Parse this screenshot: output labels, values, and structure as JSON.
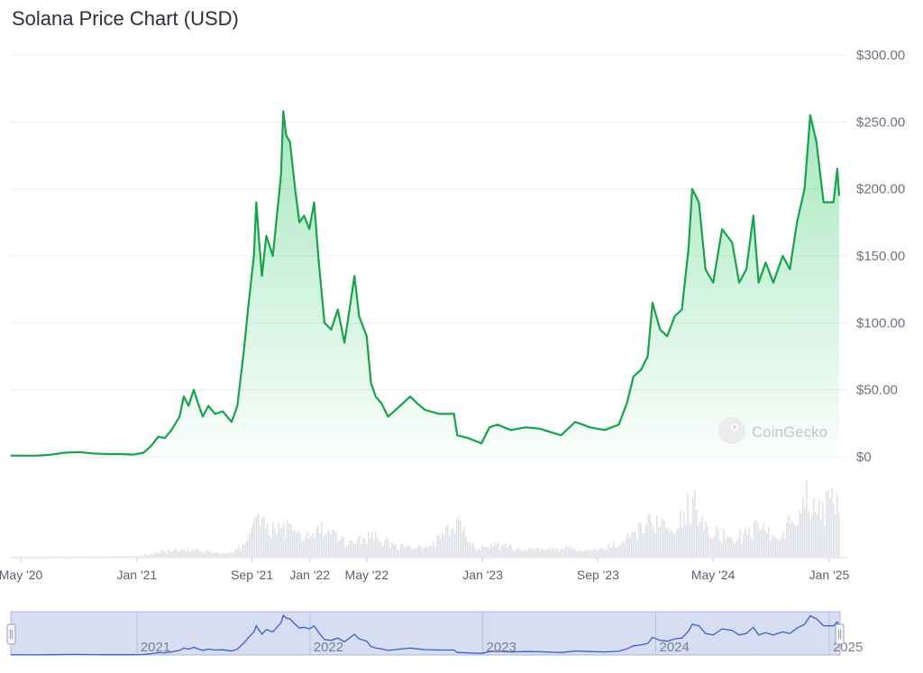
{
  "chart_data": {
    "type": "line",
    "title": "Solana Price Chart (USD)",
    "currency": "USD",
    "ylim": [
      0,
      300
    ],
    "y_ticks": [
      "$0",
      "$50.00",
      "$100.00",
      "$150.00",
      "$200.00",
      "$250.00",
      "$300.00"
    ],
    "x_ticks": [
      "May '20",
      "Jan '21",
      "Sep '21",
      "Jan '22",
      "May '22",
      "Jan '23",
      "Sep '23",
      "May '24",
      "Jan '25"
    ],
    "x_tick_dates": [
      "2020-05-01",
      "2021-01-01",
      "2021-09-01",
      "2022-01-01",
      "2022-05-01",
      "2023-01-01",
      "2023-09-01",
      "2024-05-01",
      "2025-01-01"
    ],
    "series": [
      {
        "color": "#16a34a",
        "points": [
          [
            "2020-04-10",
            0.9
          ],
          [
            "2020-06-01",
            0.8
          ],
          [
            "2020-07-01",
            1.5
          ],
          [
            "2020-08-01",
            3.0
          ],
          [
            "2020-09-01",
            3.5
          ],
          [
            "2020-10-01",
            2.5
          ],
          [
            "2020-11-01",
            2.0
          ],
          [
            "2020-12-01",
            2.0
          ],
          [
            "2020-12-25",
            1.6
          ],
          [
            "2021-01-15",
            3.0
          ],
          [
            "2021-01-31",
            8.0
          ],
          [
            "2021-02-15",
            15.0
          ],
          [
            "2021-03-01",
            14.0
          ],
          [
            "2021-03-15",
            20.0
          ],
          [
            "2021-04-01",
            30.0
          ],
          [
            "2021-04-10",
            45.0
          ],
          [
            "2021-04-20",
            38.0
          ],
          [
            "2021-05-01",
            50.0
          ],
          [
            "2021-05-10",
            40.0
          ],
          [
            "2021-05-20",
            30.0
          ],
          [
            "2021-06-01",
            38.0
          ],
          [
            "2021-06-15",
            32.0
          ],
          [
            "2021-07-01",
            34.0
          ],
          [
            "2021-07-20",
            26.0
          ],
          [
            "2021-08-01",
            38.0
          ],
          [
            "2021-08-15",
            80.0
          ],
          [
            "2021-08-25",
            115.0
          ],
          [
            "2021-09-05",
            150.0
          ],
          [
            "2021-09-10",
            190.0
          ],
          [
            "2021-09-15",
            165.0
          ],
          [
            "2021-09-22",
            135.0
          ],
          [
            "2021-10-01",
            165.0
          ],
          [
            "2021-10-15",
            150.0
          ],
          [
            "2021-11-01",
            210.0
          ],
          [
            "2021-11-06",
            258.0
          ],
          [
            "2021-11-12",
            240.0
          ],
          [
            "2021-11-20",
            235.0
          ],
          [
            "2021-12-01",
            200.0
          ],
          [
            "2021-12-10",
            175.0
          ],
          [
            "2021-12-20",
            180.0
          ],
          [
            "2021-12-31",
            170.0
          ],
          [
            "2022-01-10",
            190.0
          ],
          [
            "2022-01-20",
            145.0
          ],
          [
            "2022-02-01",
            100.0
          ],
          [
            "2022-02-15",
            95.0
          ],
          [
            "2022-03-01",
            110.0
          ],
          [
            "2022-03-15",
            85.0
          ],
          [
            "2022-04-01",
            125.0
          ],
          [
            "2022-04-05",
            135.0
          ],
          [
            "2022-04-15",
            105.0
          ],
          [
            "2022-05-01",
            90.0
          ],
          [
            "2022-05-10",
            55.0
          ],
          [
            "2022-05-20",
            45.0
          ],
          [
            "2022-06-01",
            40.0
          ],
          [
            "2022-06-15",
            30.0
          ],
          [
            "2022-07-01",
            35.0
          ],
          [
            "2022-08-01",
            45.0
          ],
          [
            "2022-08-15",
            40.0
          ],
          [
            "2022-09-01",
            35.0
          ],
          [
            "2022-10-01",
            32.0
          ],
          [
            "2022-11-01",
            32.0
          ],
          [
            "2022-11-08",
            16.0
          ],
          [
            "2022-12-01",
            14.0
          ],
          [
            "2022-12-29",
            10.0
          ],
          [
            "2023-01-15",
            22.0
          ],
          [
            "2023-02-01",
            24.0
          ],
          [
            "2023-03-01",
            20.0
          ],
          [
            "2023-04-01",
            22.0
          ],
          [
            "2023-05-01",
            21.0
          ],
          [
            "2023-06-15",
            16.0
          ],
          [
            "2023-07-15",
            26.0
          ],
          [
            "2023-08-15",
            22.0
          ],
          [
            "2023-09-15",
            20.0
          ],
          [
            "2023-10-15",
            24.0
          ],
          [
            "2023-11-01",
            40.0
          ],
          [
            "2023-11-15",
            60.0
          ],
          [
            "2023-12-01",
            65.0
          ],
          [
            "2023-12-15",
            75.0
          ],
          [
            "2023-12-25",
            115.0
          ],
          [
            "2024-01-10",
            95.0
          ],
          [
            "2024-01-25",
            90.0
          ],
          [
            "2024-02-10",
            105.0
          ],
          [
            "2024-02-25",
            110.0
          ],
          [
            "2024-03-10",
            155.0
          ],
          [
            "2024-03-18",
            200.0
          ],
          [
            "2024-04-01",
            190.0
          ],
          [
            "2024-04-15",
            140.0
          ],
          [
            "2024-05-01",
            130.0
          ],
          [
            "2024-05-20",
            170.0
          ],
          [
            "2024-06-10",
            160.0
          ],
          [
            "2024-06-25",
            130.0
          ],
          [
            "2024-07-10",
            140.0
          ],
          [
            "2024-07-25",
            180.0
          ],
          [
            "2024-08-05",
            130.0
          ],
          [
            "2024-08-20",
            145.0
          ],
          [
            "2024-09-05",
            130.0
          ],
          [
            "2024-09-25",
            150.0
          ],
          [
            "2024-10-10",
            140.0
          ],
          [
            "2024-10-25",
            175.0
          ],
          [
            "2024-11-10",
            200.0
          ],
          [
            "2024-11-22",
            255.0
          ],
          [
            "2024-12-05",
            235.0
          ],
          [
            "2024-12-20",
            190.0
          ],
          [
            "2024-12-31",
            190.0
          ],
          [
            "2025-01-10",
            190.0
          ],
          [
            "2025-01-18",
            215.0
          ],
          [
            "2025-01-22",
            195.0
          ]
        ]
      }
    ],
    "volume_series": {
      "color": "#dfe2e7",
      "points": [
        [
          "2020-04-10",
          0.5
        ],
        [
          "2020-12-31",
          1
        ],
        [
          "2021-02-15",
          6
        ],
        [
          "2021-04-01",
          10
        ],
        [
          "2021-05-15",
          8
        ],
        [
          "2021-07-15",
          4
        ],
        [
          "2021-08-20",
          22
        ],
        [
          "2021-09-08",
          70
        ],
        [
          "2021-10-01",
          35
        ],
        [
          "2021-11-05",
          45
        ],
        [
          "2021-12-15",
          25
        ],
        [
          "2022-01-22",
          40
        ],
        [
          "2022-03-15",
          20
        ],
        [
          "2022-05-10",
          30
        ],
        [
          "2022-07-01",
          15
        ],
        [
          "2022-09-01",
          12
        ],
        [
          "2022-11-08",
          45
        ],
        [
          "2022-12-15",
          12
        ],
        [
          "2023-01-15",
          18
        ],
        [
          "2023-04-01",
          10
        ],
        [
          "2023-06-15",
          12
        ],
        [
          "2023-08-15",
          8
        ],
        [
          "2023-10-15",
          18
        ],
        [
          "2023-11-15",
          30
        ],
        [
          "2023-12-25",
          55
        ],
        [
          "2024-02-01",
          30
        ],
        [
          "2024-03-18",
          80
        ],
        [
          "2024-05-01",
          35
        ],
        [
          "2024-06-15",
          25
        ],
        [
          "2024-08-05",
          45
        ],
        [
          "2024-09-15",
          25
        ],
        [
          "2024-11-12",
          85
        ],
        [
          "2024-12-10",
          60
        ],
        [
          "2025-01-18",
          90
        ],
        [
          "2025-01-22",
          40
        ]
      ]
    },
    "navigator": {
      "labels": [
        "2021",
        "2022",
        "2023",
        "2024",
        "2025"
      ],
      "label_dates": [
        "2021-01-01",
        "2022-01-01",
        "2023-01-01",
        "2024-01-01",
        "2025-01-01"
      ],
      "line_color": "#3d5fc4",
      "selection_color": "#c9d3ee"
    },
    "grid": true,
    "watermark": "CoinGecko"
  }
}
